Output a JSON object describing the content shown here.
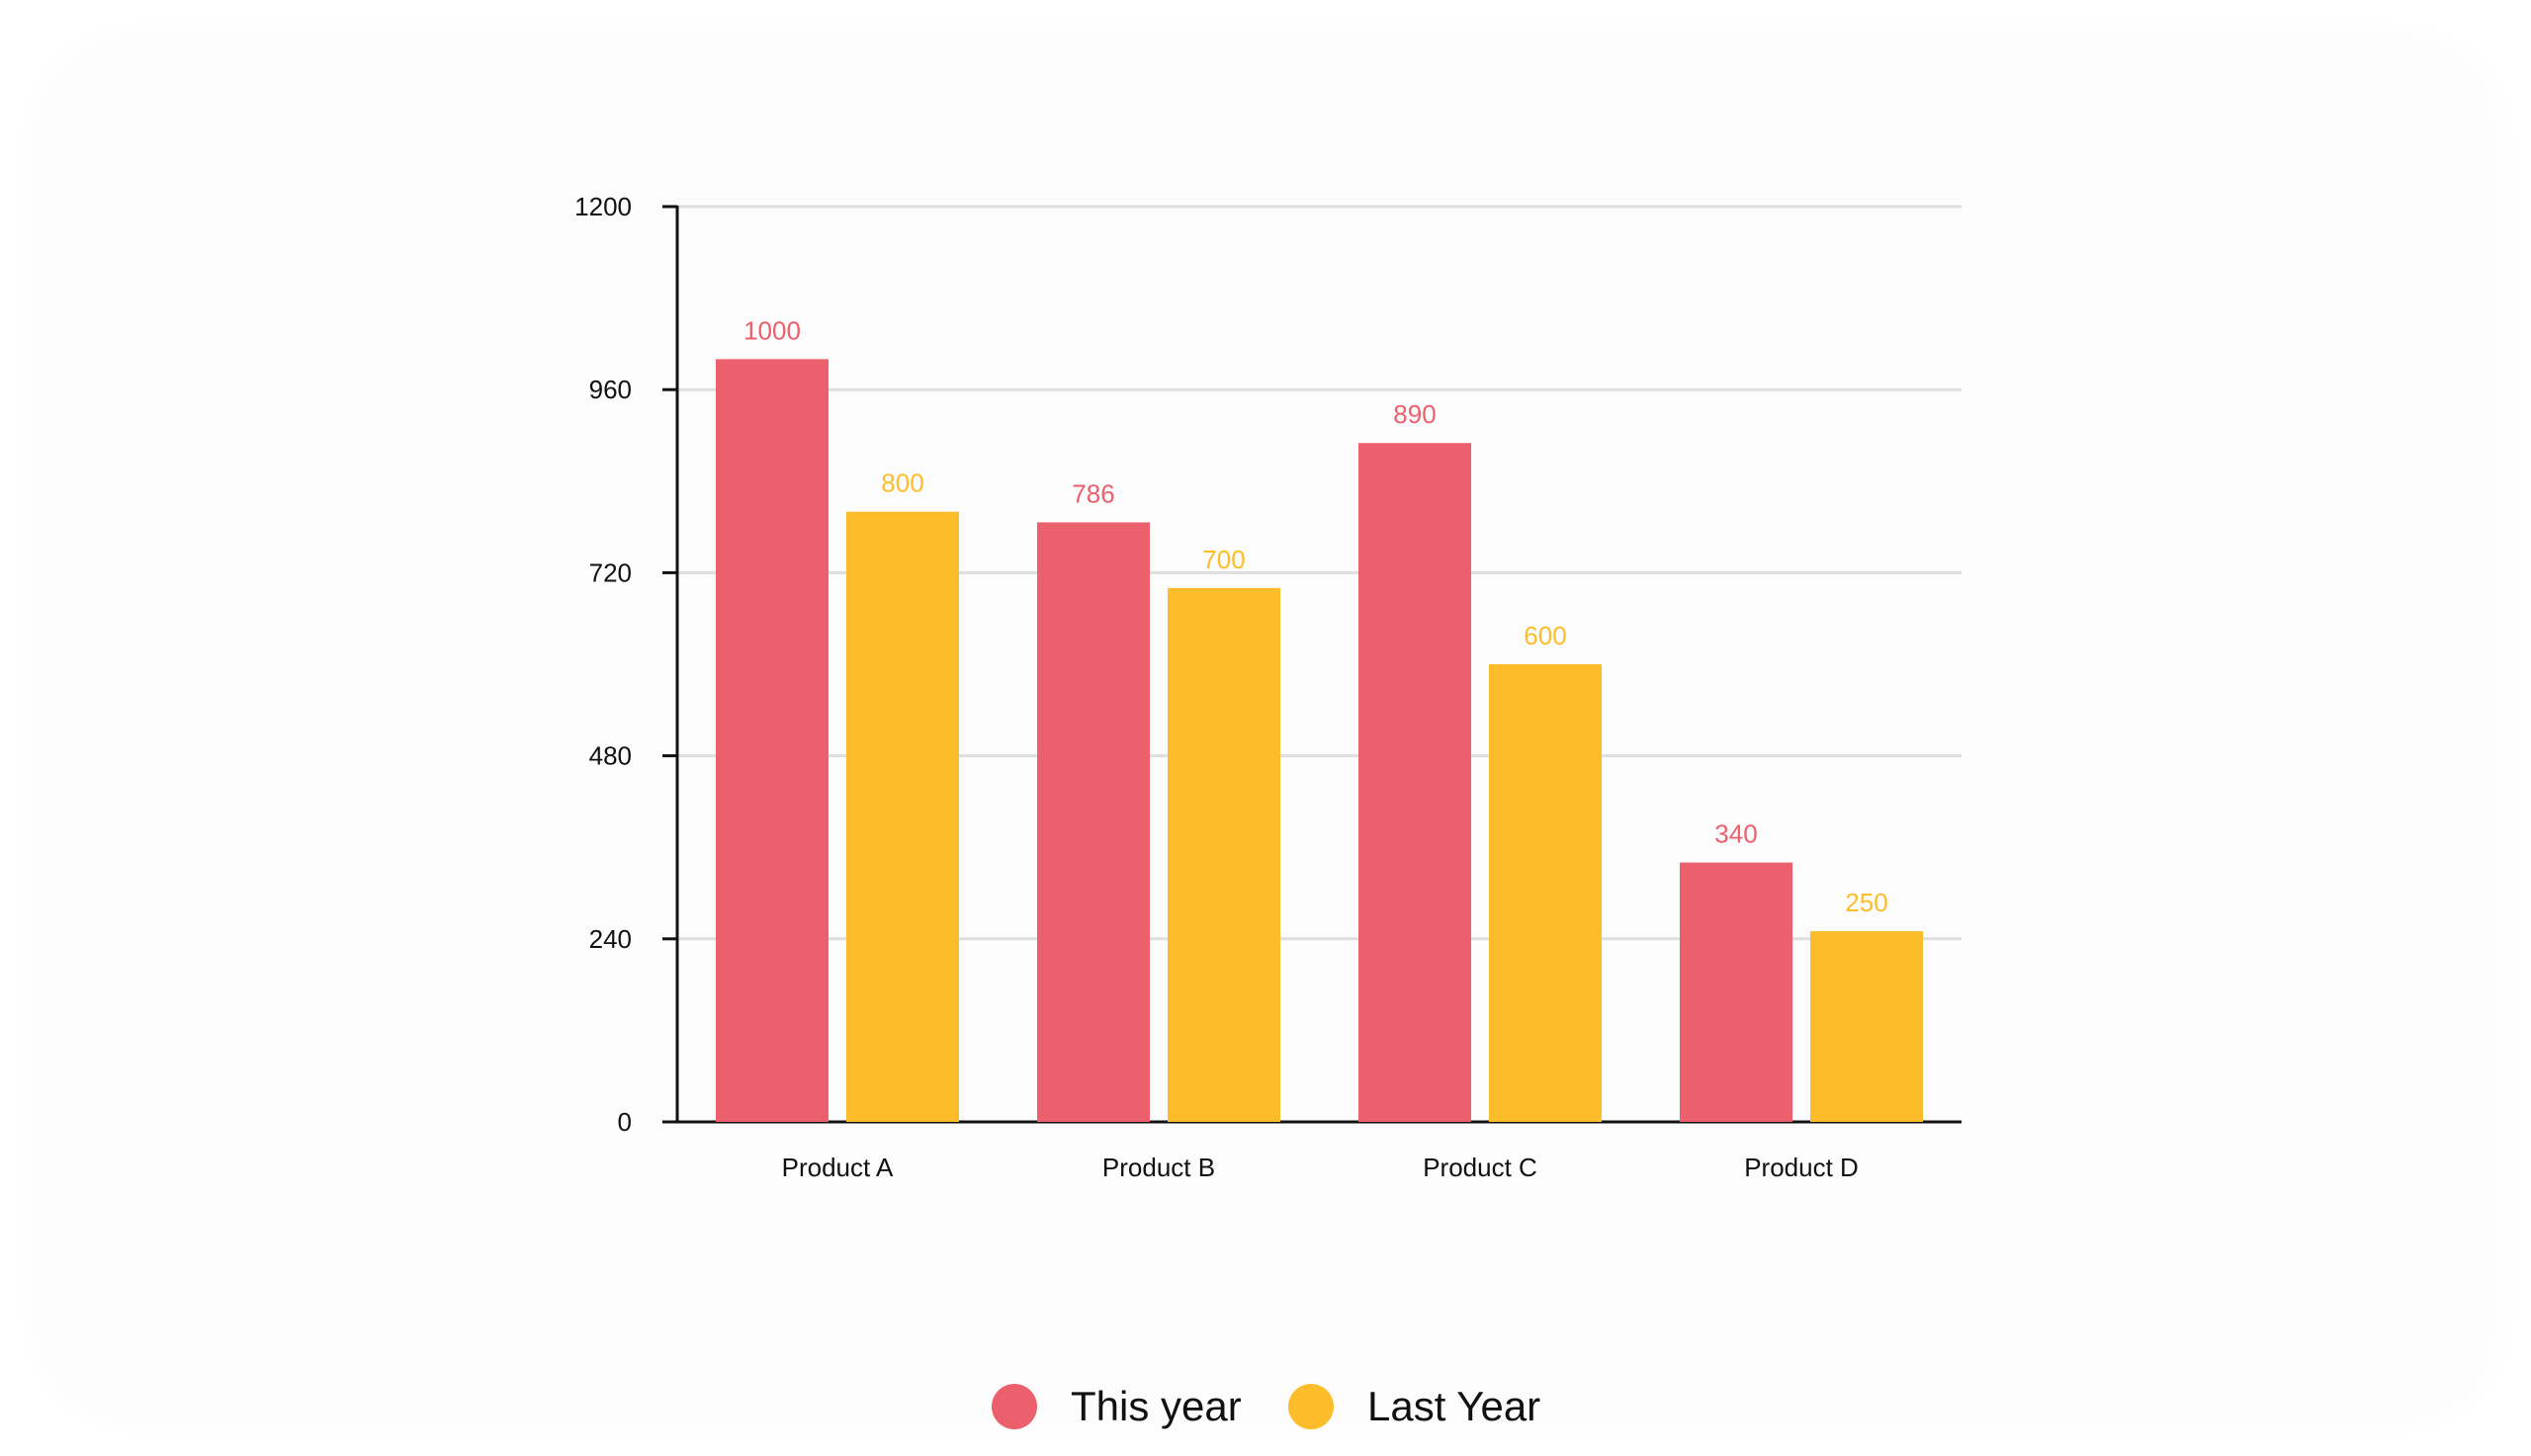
{
  "chart_data": {
    "type": "bar",
    "title": "",
    "xlabel": "",
    "ylabel": "",
    "categories": [
      "Product A",
      "Product B",
      "Product C",
      "Product D"
    ],
    "series": [
      {
        "name": "This year",
        "values": [
          1000,
          786,
          890,
          340
        ],
        "color": "#ec5f6d"
      },
      {
        "name": "Last Year",
        "values": [
          800,
          700,
          600,
          250
        ],
        "color": "#fdbd2a"
      }
    ],
    "ylim": [
      0,
      1200
    ],
    "yticks": [
      0,
      240,
      480,
      720,
      960,
      1200
    ],
    "grid": true,
    "data_labels": true,
    "legend_position": "bottom-center"
  }
}
